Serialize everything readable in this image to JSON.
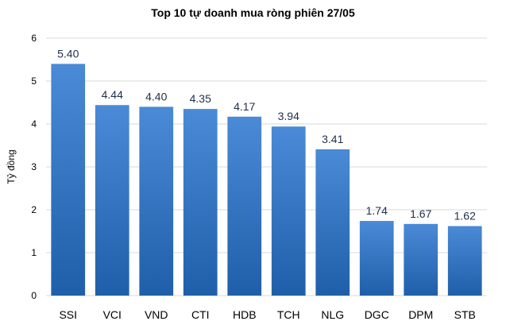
{
  "chart_data": {
    "type": "bar",
    "title": "Top 10 tự doanh mua ròng phiên 27/05",
    "xlabel": "",
    "ylabel": "Tỷ đồng",
    "ylim": [
      0,
      6
    ],
    "yticks": [
      0,
      1,
      2,
      3,
      4,
      5,
      6
    ],
    "categories": [
      "SSI",
      "VCI",
      "VND",
      "CTI",
      "HDB",
      "TCH",
      "NLG",
      "DGC",
      "DPM",
      "STB"
    ],
    "values": [
      5.4,
      4.44,
      4.4,
      4.35,
      4.17,
      3.94,
      3.41,
      1.74,
      1.67,
      1.62
    ],
    "data_labels": [
      "5.40",
      "4.44",
      "4.40",
      "4.35",
      "4.17",
      "3.94",
      "3.41",
      "1.74",
      "1.67",
      "1.62"
    ],
    "grid": true,
    "legend": "none",
    "colors": {
      "bar_top": "#4a8ad6",
      "bar_bottom": "#1f5faa",
      "grid": "#d9d9d9",
      "label": "#1f2f4a"
    }
  }
}
